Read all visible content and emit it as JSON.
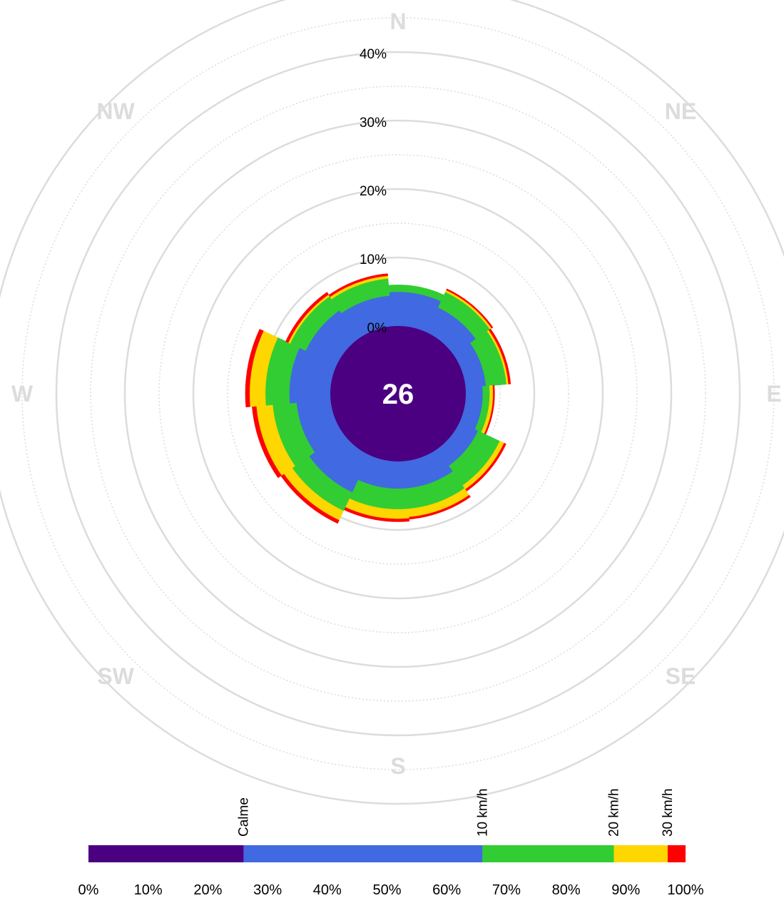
{
  "chart_data": {
    "type": "wind-rose",
    "center_value": "26",
    "directions": [
      "N",
      "NE",
      "E",
      "SE",
      "S",
      "SW",
      "W",
      "NW"
    ],
    "radial_ticks": [
      "0%",
      "10%",
      "20%",
      "30%",
      "40%"
    ],
    "radial_max": 50,
    "calm_percent": 26,
    "colors": {
      "calm": "#4b0082",
      "band_0_10": "#4169e1",
      "band_10_20": "#32cd32",
      "band_20_30": "#ffd700",
      "band_30_plus": "#ff0000",
      "grid": "#dcdcdc"
    },
    "sectors_deg": [
      0,
      10,
      20,
      30,
      40,
      50,
      60,
      70,
      80,
      90,
      100,
      110,
      120,
      130,
      140,
      150,
      160,
      170,
      180,
      190,
      200,
      210,
      220,
      230,
      240,
      250,
      260,
      270,
      280,
      290,
      300,
      310,
      320,
      330,
      340,
      350
    ],
    "sector_cumulative_percent": [
      [
        5,
        1,
        0,
        0
      ],
      [
        5,
        1,
        0,
        0
      ],
      [
        5,
        1,
        0,
        0
      ],
      [
        4,
        2.5,
        0.3,
        0.2
      ],
      [
        4,
        2.5,
        0.3,
        0.2
      ],
      [
        4,
        2.5,
        0.3,
        0.2
      ],
      [
        3,
        3,
        0.3,
        0.3
      ],
      [
        3,
        3,
        0.3,
        0.3
      ],
      [
        3,
        3,
        0.3,
        0.3
      ],
      [
        2.5,
        1,
        0.5,
        0.2
      ],
      [
        2.5,
        1,
        0.5,
        0.2
      ],
      [
        2.5,
        1,
        0.5,
        0.2
      ],
      [
        3,
        3.5,
        0.7,
        0.3
      ],
      [
        3,
        3.5,
        0.7,
        0.3
      ],
      [
        3,
        3.5,
        0.7,
        0.3
      ],
      [
        4,
        3,
        1.2,
        0.3
      ],
      [
        4,
        3,
        1.2,
        0.3
      ],
      [
        4,
        3,
        1.2,
        0.3
      ],
      [
        4,
        3,
        1.4,
        0.4
      ],
      [
        4,
        3,
        1.4,
        0.4
      ],
      [
        4,
        3,
        1.4,
        0.4
      ],
      [
        6,
        3,
        1.5,
        0.5
      ],
      [
        6,
        3,
        1.5,
        0.5
      ],
      [
        6,
        3,
        1.5,
        0.5
      ],
      [
        5,
        3.5,
        2.4,
        0.6
      ],
      [
        5,
        3.5,
        2.4,
        0.6
      ],
      [
        5,
        3.5,
        2.4,
        0.6
      ],
      [
        6,
        3.5,
        2.3,
        0.6
      ],
      [
        6,
        3.5,
        2.3,
        0.6
      ],
      [
        6,
        3.5,
        2.3,
        0.6
      ],
      [
        5,
        2.5,
        0.3,
        0.4
      ],
      [
        5,
        2.5,
        0.3,
        0.4
      ],
      [
        5,
        2.5,
        0.3,
        0.4
      ],
      [
        4.5,
        2.5,
        0.4,
        0.3
      ],
      [
        4.5,
        2.5,
        0.4,
        0.3
      ],
      [
        4.5,
        2.5,
        0.4,
        0.3
      ]
    ],
    "legend": {
      "ticks": [
        "0%",
        "10%",
        "20%",
        "30%",
        "40%",
        "50%",
        "60%",
        "70%",
        "80%",
        "90%",
        "100%"
      ],
      "segments": [
        {
          "label": "",
          "from": 0,
          "to": 26,
          "color": "#4b0082"
        },
        {
          "label": "Calme",
          "from": 26,
          "to": 66,
          "color": "#4169e1"
        },
        {
          "label": "10 km/h",
          "from": 66,
          "to": 88,
          "color": "#32cd32"
        },
        {
          "label": "20 km/h",
          "from": 88,
          "to": 97,
          "color": "#ffd700"
        },
        {
          "label": "30 km/h",
          "from": 97,
          "to": 100,
          "color": "#ff0000"
        }
      ]
    }
  }
}
